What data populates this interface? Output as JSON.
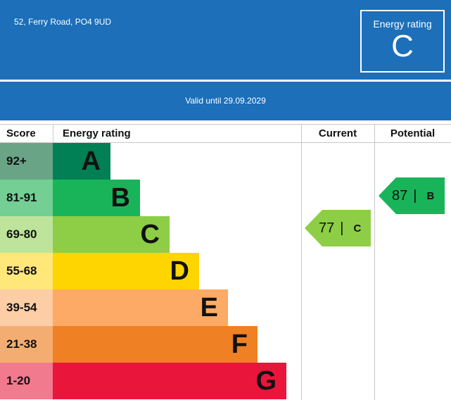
{
  "header": {
    "address": "52, Ferry Road, PO4 9UD",
    "rating_box_title": "Energy rating",
    "rating_box_letter": "C",
    "valid_until": "Valid until 29.09.2029"
  },
  "table": {
    "headers": {
      "score": "Score",
      "energy_rating": "Energy rating",
      "current": "Current",
      "potential": "Potential"
    },
    "bands": [
      {
        "score": "92+",
        "letter": "A",
        "color": "#008054",
        "score_bg": "#6aa486"
      },
      {
        "score": "81-91",
        "letter": "B",
        "color": "#19b459",
        "score_bg": "#73cf93"
      },
      {
        "score": "69-80",
        "letter": "C",
        "color": "#8dce46",
        "score_bg": "#bde49a"
      },
      {
        "score": "55-68",
        "letter": "D",
        "color": "#ffd500",
        "score_bg": "#ffe77a"
      },
      {
        "score": "39-54",
        "letter": "E",
        "color": "#fcaa65",
        "score_bg": "#fdcda5"
      },
      {
        "score": "21-38",
        "letter": "F",
        "color": "#ef8023",
        "score_bg": "#f4ad71"
      },
      {
        "score": "1-20",
        "letter": "G",
        "color": "#e9153b",
        "score_bg": "#f27a8e"
      }
    ],
    "current": {
      "value": "77",
      "separator": "|",
      "letter": "C",
      "color": "#8dce46"
    },
    "potential": {
      "value": "87",
      "separator": "|",
      "letter": "B",
      "color": "#19b459"
    }
  }
}
